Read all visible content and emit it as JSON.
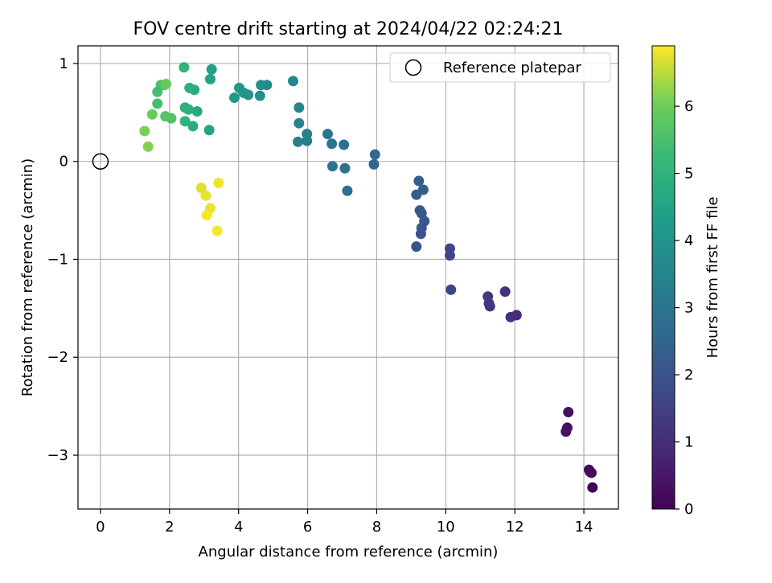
{
  "chart_data": {
    "type": "scatter",
    "title": "FOV centre drift starting at 2024/04/22 02:24:21",
    "xlabel": "Angular distance from reference (arcmin)",
    "ylabel": "Rotation from reference (arcmin)",
    "xlim": [
      -0.65,
      15.0
    ],
    "ylim": [
      -3.55,
      1.18
    ],
    "xticks": [
      0,
      2,
      4,
      6,
      8,
      10,
      12,
      14
    ],
    "xtick_labels": [
      "0",
      "2",
      "4",
      "6",
      "8",
      "10",
      "12",
      "14"
    ],
    "yticks": [
      1,
      0,
      -1,
      -2,
      -3
    ],
    "ytick_labels": [
      "1",
      "0",
      "−1",
      "−2",
      "−3"
    ],
    "grid": true,
    "legend": {
      "placement": "top-right",
      "entries": [
        "Reference platepar"
      ]
    },
    "reference_point": {
      "label": "Reference platepar",
      "x": 0,
      "y": 0,
      "marker": "open-circle"
    },
    "colorbar": {
      "label": "Hours from first FF file",
      "colormap": "viridis",
      "range": [
        0,
        6.9
      ],
      "ticks": [
        0,
        1,
        2,
        3,
        4,
        5,
        6
      ],
      "tick_labels": [
        "0",
        "1",
        "2",
        "3",
        "4",
        "5",
        "6"
      ]
    },
    "points": [
      {
        "x": 14.25,
        "y": -3.33,
        "c": 0.05
      },
      {
        "x": 14.18,
        "y": -3.17,
        "c": 0.1
      },
      {
        "x": 14.15,
        "y": -3.15,
        "c": 0.15
      },
      {
        "x": 14.22,
        "y": -3.18,
        "c": 0.2
      },
      {
        "x": 13.55,
        "y": -2.56,
        "c": 0.3
      },
      {
        "x": 13.52,
        "y": -2.72,
        "c": 0.35
      },
      {
        "x": 13.48,
        "y": -2.76,
        "c": 0.4
      },
      {
        "x": 12.05,
        "y": -1.57,
        "c": 1.0
      },
      {
        "x": 11.88,
        "y": -1.59,
        "c": 1.05
      },
      {
        "x": 11.72,
        "y": -1.33,
        "c": 1.1
      },
      {
        "x": 11.28,
        "y": -1.48,
        "c": 1.15
      },
      {
        "x": 11.25,
        "y": -1.45,
        "c": 1.2
      },
      {
        "x": 11.22,
        "y": -1.38,
        "c": 1.25
      },
      {
        "x": 10.15,
        "y": -1.31,
        "c": 1.6
      },
      {
        "x": 10.12,
        "y": -0.96,
        "c": 1.65
      },
      {
        "x": 10.12,
        "y": -0.89,
        "c": 1.7
      },
      {
        "x": 9.15,
        "y": -0.87,
        "c": 1.95
      },
      {
        "x": 9.28,
        "y": -0.74,
        "c": 2.0
      },
      {
        "x": 9.3,
        "y": -0.68,
        "c": 2.05
      },
      {
        "x": 9.38,
        "y": -0.61,
        "c": 2.1
      },
      {
        "x": 9.3,
        "y": -0.53,
        "c": 2.15
      },
      {
        "x": 9.25,
        "y": -0.5,
        "c": 2.2
      },
      {
        "x": 9.15,
        "y": -0.34,
        "c": 2.25
      },
      {
        "x": 9.35,
        "y": -0.29,
        "c": 2.3
      },
      {
        "x": 9.22,
        "y": -0.2,
        "c": 2.35
      },
      {
        "x": 7.92,
        "y": -0.03,
        "c": 2.6
      },
      {
        "x": 7.95,
        "y": 0.07,
        "c": 2.65
      },
      {
        "x": 7.15,
        "y": -0.3,
        "c": 2.8
      },
      {
        "x": 7.08,
        "y": -0.07,
        "c": 2.85
      },
      {
        "x": 7.05,
        "y": 0.17,
        "c": 2.9
      },
      {
        "x": 6.72,
        "y": -0.05,
        "c": 3.0
      },
      {
        "x": 6.7,
        "y": 0.18,
        "c": 3.05
      },
      {
        "x": 6.58,
        "y": 0.28,
        "c": 3.1
      },
      {
        "x": 5.98,
        "y": 0.28,
        "c": 3.3
      },
      {
        "x": 5.98,
        "y": 0.21,
        "c": 3.35
      },
      {
        "x": 5.72,
        "y": 0.2,
        "c": 3.4
      },
      {
        "x": 5.75,
        "y": 0.39,
        "c": 3.45
      },
      {
        "x": 5.75,
        "y": 0.55,
        "c": 3.5
      },
      {
        "x": 5.58,
        "y": 0.82,
        "c": 3.6
      },
      {
        "x": 4.82,
        "y": 0.78,
        "c": 3.8
      },
      {
        "x": 4.65,
        "y": 0.78,
        "c": 3.85
      },
      {
        "x": 4.62,
        "y": 0.67,
        "c": 3.9
      },
      {
        "x": 4.28,
        "y": 0.68,
        "c": 4.0
      },
      {
        "x": 4.15,
        "y": 0.7,
        "c": 4.05
      },
      {
        "x": 4.02,
        "y": 0.75,
        "c": 4.1
      },
      {
        "x": 3.88,
        "y": 0.65,
        "c": 4.15
      },
      {
        "x": 3.22,
        "y": 0.94,
        "c": 4.4
      },
      {
        "x": 3.18,
        "y": 0.84,
        "c": 4.45
      },
      {
        "x": 3.15,
        "y": 0.32,
        "c": 4.5
      },
      {
        "x": 2.8,
        "y": 0.51,
        "c": 4.7
      },
      {
        "x": 2.72,
        "y": 0.73,
        "c": 4.75
      },
      {
        "x": 2.68,
        "y": 0.36,
        "c": 4.8
      },
      {
        "x": 2.55,
        "y": 0.53,
        "c": 4.85
      },
      {
        "x": 2.58,
        "y": 0.75,
        "c": 4.9
      },
      {
        "x": 2.45,
        "y": 0.55,
        "c": 4.95
      },
      {
        "x": 2.45,
        "y": 0.41,
        "c": 5.0
      },
      {
        "x": 2.42,
        "y": 0.96,
        "c": 5.05
      },
      {
        "x": 2.05,
        "y": 0.44,
        "c": 5.6
      },
      {
        "x": 1.75,
        "y": 0.78,
        "c": 5.5
      },
      {
        "x": 1.85,
        "y": 0.78,
        "c": 5.55
      },
      {
        "x": 1.65,
        "y": 0.59,
        "c": 5.45
      },
      {
        "x": 1.65,
        "y": 0.71,
        "c": 5.4
      },
      {
        "x": 1.88,
        "y": 0.46,
        "c": 5.65
      },
      {
        "x": 1.9,
        "y": 0.79,
        "c": 5.9
      },
      {
        "x": 1.5,
        "y": 0.48,
        "c": 5.95
      },
      {
        "x": 1.28,
        "y": 0.31,
        "c": 6.1
      },
      {
        "x": 1.38,
        "y": 0.15,
        "c": 6.15
      },
      {
        "x": 2.92,
        "y": -0.27,
        "c": 6.7
      },
      {
        "x": 3.05,
        "y": -0.35,
        "c": 6.75
      },
      {
        "x": 3.18,
        "y": -0.48,
        "c": 6.8
      },
      {
        "x": 3.08,
        "y": -0.55,
        "c": 6.85
      },
      {
        "x": 3.42,
        "y": -0.22,
        "c": 6.82
      },
      {
        "x": 3.38,
        "y": -0.71,
        "c": 6.88
      }
    ]
  }
}
